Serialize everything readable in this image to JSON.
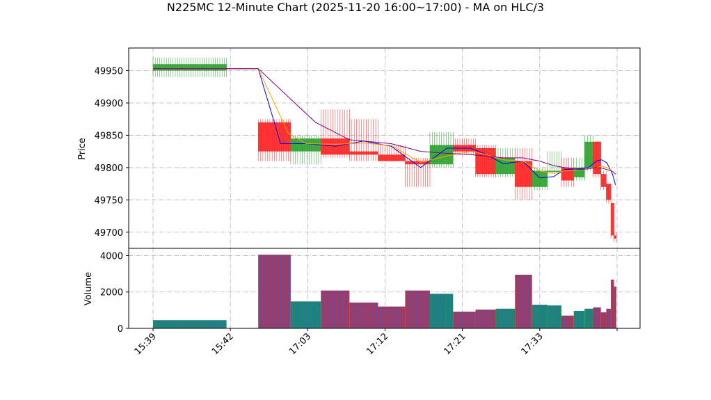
{
  "chart_data": {
    "type": "candlestick",
    "title": "N225MC 12-Minute Chart (2025-11-20 16:00~17:00) - MA on HLC/3",
    "price_panel": {
      "ylabel": "Price",
      "ylim": [
        49675,
        49985
      ],
      "yticks": [
        49700,
        49750,
        49800,
        49850,
        49900,
        49950
      ],
      "grid": true
    },
    "volume_panel": {
      "ylabel": "Volume",
      "ylim": [
        0,
        4400
      ],
      "yticks": [
        0,
        2000,
        4000
      ],
      "grid": true
    },
    "x_tick_labels": [
      "15:39",
      "15:42",
      "17:03",
      "17:12",
      "17:21",
      "17:33",
      ""
    ],
    "candles": [
      {
        "x0": 0,
        "x1": 9.5,
        "open": 49950,
        "high": 49970,
        "low": 49940,
        "close": 49960,
        "volume": 450
      },
      {
        "x0": 13.6,
        "x1": 17.8,
        "open": 49870,
        "high": 49875,
        "low": 49810,
        "close": 49825,
        "volume": 4050
      },
      {
        "x0": 17.8,
        "x1": 21.7,
        "open": 49825,
        "high": 49850,
        "low": 49805,
        "close": 49845,
        "volume": 1480
      },
      {
        "x0": 21.7,
        "x1": 25.4,
        "open": 49845,
        "high": 49890,
        "low": 49815,
        "close": 49820,
        "volume": 2080
      },
      {
        "x0": 25.4,
        "x1": 29.1,
        "open": 49825,
        "high": 49875,
        "low": 49810,
        "close": 49820,
        "volume": 1420
      },
      {
        "x0": 29.1,
        "x1": 32.6,
        "open": 49820,
        "high": 49835,
        "low": 49810,
        "close": 49810,
        "volume": 1200
      },
      {
        "x0": 32.6,
        "x1": 35.8,
        "open": 49810,
        "high": 49815,
        "low": 49770,
        "close": 49805,
        "volume": 2080
      },
      {
        "x0": 35.8,
        "x1": 38.8,
        "open": 49805,
        "high": 49855,
        "low": 49800,
        "close": 49835,
        "volume": 1900
      },
      {
        "x0": 38.8,
        "x1": 41.7,
        "open": 49835,
        "high": 49845,
        "low": 49820,
        "close": 49825,
        "volume": 920
      },
      {
        "x0": 41.7,
        "x1": 44.3,
        "open": 49830,
        "high": 49835,
        "low": 49785,
        "close": 49790,
        "volume": 1030
      },
      {
        "x0": 44.3,
        "x1": 46.8,
        "open": 49790,
        "high": 49830,
        "low": 49785,
        "close": 49815,
        "volume": 1080
      },
      {
        "x0": 46.8,
        "x1": 49.0,
        "open": 49810,
        "high": 49830,
        "low": 49750,
        "close": 49770,
        "volume": 2950
      },
      {
        "x0": 49.0,
        "x1": 51.0,
        "open": 49770,
        "high": 49800,
        "low": 49765,
        "close": 49795,
        "volume": 1300
      },
      {
        "x0": 51.0,
        "x1": 52.8,
        "open": 49795,
        "high": 49825,
        "low": 49790,
        "close": 49795,
        "volume": 1260
      },
      {
        "x0": 52.8,
        "x1": 54.4,
        "open": 49800,
        "high": 49815,
        "low": 49770,
        "close": 49780,
        "volume": 700
      },
      {
        "x0": 54.4,
        "x1": 55.8,
        "open": 49785,
        "high": 49815,
        "low": 49780,
        "close": 49800,
        "volume": 960
      },
      {
        "x0": 55.8,
        "x1": 56.9,
        "open": 49800,
        "high": 49850,
        "low": 49795,
        "close": 49840,
        "volume": 1080
      },
      {
        "x0": 56.9,
        "x1": 57.9,
        "open": 49840,
        "high": 49840,
        "low": 49785,
        "close": 49790,
        "volume": 1150
      },
      {
        "x0": 57.9,
        "x1": 58.6,
        "open": 49790,
        "high": 49795,
        "low": 49765,
        "close": 49770,
        "volume": 880
      },
      {
        "x0": 58.6,
        "x1": 59.2,
        "open": 49775,
        "high": 49775,
        "low": 49745,
        "close": 49750,
        "volume": 1080
      },
      {
        "x0": 59.2,
        "x1": 59.6,
        "open": 49745,
        "high": 49745,
        "low": 49690,
        "close": 49695,
        "volume": 2680
      },
      {
        "x0": 59.6,
        "x1": 59.9,
        "open": 49695,
        "high": 49700,
        "low": 49685,
        "close": 49690,
        "volume": 2300
      }
    ],
    "series": [
      {
        "color": "#0000ff",
        "width": 1,
        "points": [
          [
            0,
            49953
          ],
          [
            13.6,
            49953
          ],
          [
            16.5,
            49837
          ],
          [
            19.8,
            49837
          ],
          [
            23.6,
            49833
          ],
          [
            27.2,
            49841
          ],
          [
            30.8,
            49833
          ],
          [
            34.6,
            49800
          ],
          [
            38.0,
            49830
          ],
          [
            41.0,
            49830
          ],
          [
            42.8,
            49822
          ],
          [
            45.3,
            49806
          ],
          [
            47.8,
            49810
          ],
          [
            50.0,
            49784
          ],
          [
            51.8,
            49786
          ],
          [
            53.2,
            49797
          ],
          [
            55.0,
            49798
          ],
          [
            56.3,
            49800
          ],
          [
            57.3,
            49810
          ],
          [
            58.0,
            49812
          ],
          [
            58.7,
            49807
          ],
          [
            59.4,
            49790
          ],
          [
            59.8,
            49773
          ]
        ]
      },
      {
        "color": "#ffa500",
        "width": 1,
        "points": [
          [
            0,
            49953
          ],
          [
            13.6,
            49953
          ],
          [
            17.5,
            49853
          ],
          [
            19.8,
            49837
          ],
          [
            23.6,
            49836
          ],
          [
            27.2,
            49838
          ],
          [
            30.8,
            49834
          ],
          [
            34.6,
            49808
          ],
          [
            38.0,
            49818
          ],
          [
            41.0,
            49825
          ],
          [
            42.8,
            49821
          ],
          [
            45.3,
            49812
          ],
          [
            47.8,
            49810
          ],
          [
            50.0,
            49795
          ],
          [
            51.8,
            49791
          ],
          [
            53.2,
            49795
          ],
          [
            55.0,
            49796
          ],
          [
            56.3,
            49798
          ],
          [
            57.3,
            49800
          ],
          [
            58.0,
            49802
          ],
          [
            58.7,
            49800
          ],
          [
            59.4,
            49794
          ],
          [
            59.8,
            49790
          ]
        ]
      },
      {
        "color": "#800080",
        "width": 1,
        "points": [
          [
            0,
            49953
          ],
          [
            13.6,
            49953
          ],
          [
            21.0,
            49870
          ],
          [
            25.4,
            49843
          ],
          [
            30.8,
            49837
          ],
          [
            34.6,
            49825
          ],
          [
            38.0,
            49822
          ],
          [
            41.0,
            49820
          ],
          [
            42.8,
            49818
          ],
          [
            45.3,
            49815
          ],
          [
            47.8,
            49815
          ],
          [
            50.0,
            49810
          ],
          [
            51.8,
            49803
          ],
          [
            53.2,
            49800
          ],
          [
            55.0,
            49797
          ],
          [
            56.3,
            49798
          ],
          [
            57.3,
            49800
          ],
          [
            58.0,
            49799
          ],
          [
            58.7,
            49797
          ],
          [
            59.4,
            49794
          ],
          [
            59.8,
            49790
          ]
        ]
      }
    ]
  }
}
